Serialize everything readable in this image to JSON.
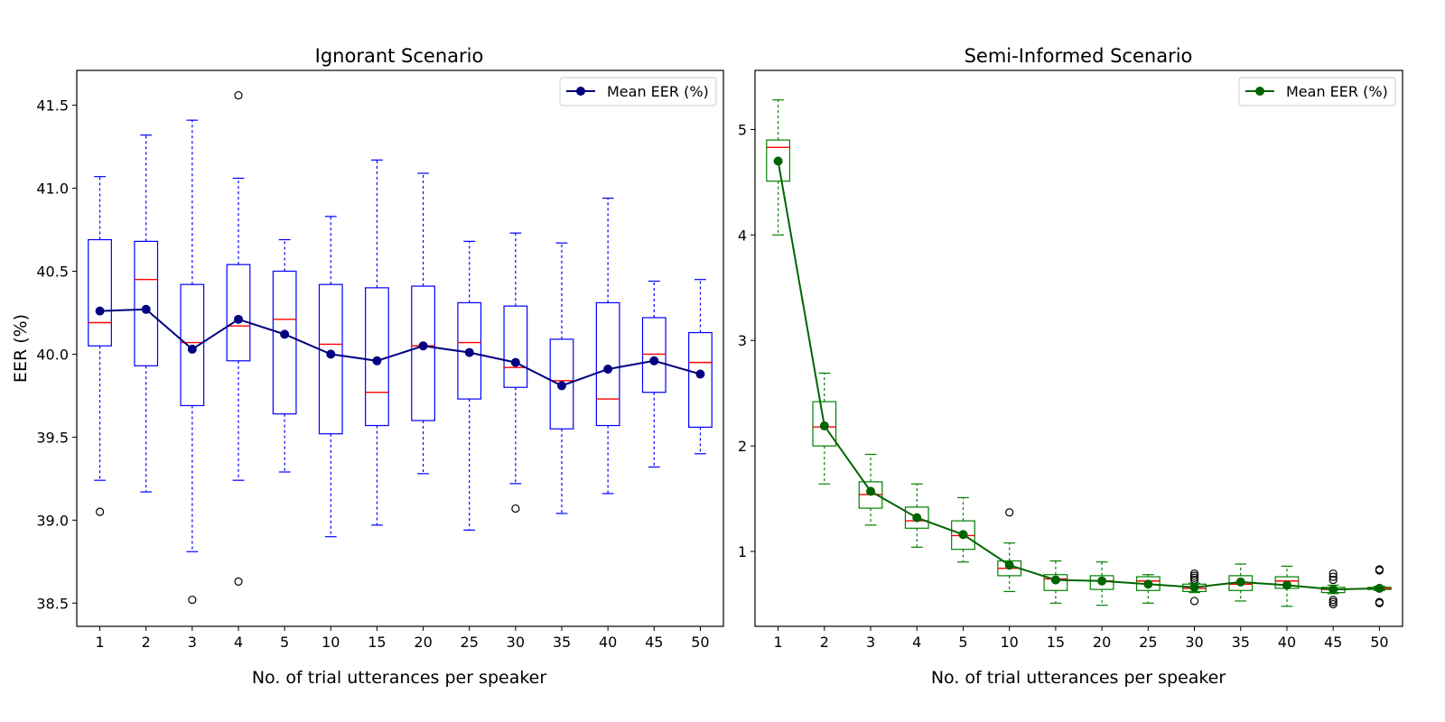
{
  "chart_data": [
    {
      "type": "box",
      "title": "Ignorant Scenario",
      "xlabel": "No. of trial utterances per speaker",
      "ylabel": "EER (%)",
      "ylim": [
        38.36,
        41.71
      ],
      "yticks": [
        38.5,
        39.0,
        39.5,
        40.0,
        40.5,
        41.0,
        41.5
      ],
      "categories": [
        "1",
        "2",
        "3",
        "4",
        "5",
        "10",
        "15",
        "20",
        "25",
        "30",
        "35",
        "40",
        "45",
        "50"
      ],
      "legend": {
        "label": "Mean EER (%)",
        "placement": "top-right"
      },
      "colors": {
        "box": "#0000ff",
        "median": "#ff0000",
        "mean": "#000080"
      },
      "boxes": [
        {
          "whislo": 39.24,
          "q1": 40.05,
          "med": 40.19,
          "q3": 40.69,
          "whishi": 41.07,
          "fliers": [
            39.05
          ]
        },
        {
          "whislo": 39.17,
          "q1": 39.93,
          "med": 40.45,
          "q3": 40.68,
          "whishi": 41.32,
          "fliers": []
        },
        {
          "whislo": 38.81,
          "q1": 39.69,
          "med": 40.07,
          "q3": 40.42,
          "whishi": 41.41,
          "fliers": [
            38.52
          ]
        },
        {
          "whislo": 39.24,
          "q1": 39.96,
          "med": 40.17,
          "q3": 40.54,
          "whishi": 41.06,
          "fliers": [
            41.56,
            38.63
          ]
        },
        {
          "whislo": 39.29,
          "q1": 39.64,
          "med": 40.21,
          "q3": 40.5,
          "whishi": 40.69,
          "fliers": []
        },
        {
          "whislo": 38.9,
          "q1": 39.52,
          "med": 40.06,
          "q3": 40.42,
          "whishi": 40.83,
          "fliers": []
        },
        {
          "whislo": 38.97,
          "q1": 39.57,
          "med": 39.77,
          "q3": 40.4,
          "whishi": 41.17,
          "fliers": []
        },
        {
          "whislo": 39.28,
          "q1": 39.6,
          "med": 40.05,
          "q3": 40.41,
          "whishi": 41.09,
          "fliers": []
        },
        {
          "whislo": 38.94,
          "q1": 39.73,
          "med": 40.07,
          "q3": 40.31,
          "whishi": 40.68,
          "fliers": []
        },
        {
          "whislo": 39.22,
          "q1": 39.8,
          "med": 39.92,
          "q3": 40.29,
          "whishi": 40.73,
          "fliers": [
            39.07
          ]
        },
        {
          "whislo": 39.04,
          "q1": 39.55,
          "med": 39.84,
          "q3": 40.09,
          "whishi": 40.67,
          "fliers": []
        },
        {
          "whislo": 39.16,
          "q1": 39.57,
          "med": 39.73,
          "q3": 40.31,
          "whishi": 40.94,
          "fliers": []
        },
        {
          "whislo": 39.32,
          "q1": 39.77,
          "med": 40.0,
          "q3": 40.22,
          "whishi": 40.44,
          "fliers": []
        },
        {
          "whislo": 39.4,
          "q1": 39.56,
          "med": 39.95,
          "q3": 40.13,
          "whishi": 40.45,
          "fliers": []
        }
      ],
      "series": [
        {
          "name": "Mean EER (%)",
          "values": [
            40.26,
            40.27,
            40.03,
            40.21,
            40.12,
            40.0,
            39.96,
            40.05,
            40.01,
            39.95,
            39.81,
            39.91,
            39.96,
            39.88
          ]
        }
      ]
    },
    {
      "type": "box",
      "title": "Semi-Informed Scenario",
      "xlabel": "No. of trial utterances per speaker",
      "ylabel": "",
      "ylim": [
        0.29,
        5.56
      ],
      "yticks": [
        1,
        2,
        3,
        4,
        5
      ],
      "categories": [
        "1",
        "2",
        "3",
        "4",
        "5",
        "10",
        "15",
        "20",
        "25",
        "30",
        "35",
        "40",
        "45",
        "50"
      ],
      "legend": {
        "label": "Mean EER (%)",
        "placement": "top-right"
      },
      "colors": {
        "box": "#008000",
        "median": "#ff0000",
        "mean": "#006400"
      },
      "boxes": [
        {
          "whislo": 4.0,
          "q1": 4.51,
          "med": 4.83,
          "q3": 4.9,
          "whishi": 5.28,
          "fliers": []
        },
        {
          "whislo": 1.64,
          "q1": 2.0,
          "med": 2.18,
          "q3": 2.42,
          "whishi": 2.69,
          "fliers": []
        },
        {
          "whislo": 1.25,
          "q1": 1.41,
          "med": 1.54,
          "q3": 1.66,
          "whishi": 1.92,
          "fliers": []
        },
        {
          "whislo": 1.04,
          "q1": 1.22,
          "med": 1.29,
          "q3": 1.42,
          "whishi": 1.64,
          "fliers": []
        },
        {
          "whislo": 0.9,
          "q1": 1.02,
          "med": 1.15,
          "q3": 1.29,
          "whishi": 1.51,
          "fliers": []
        },
        {
          "whislo": 0.62,
          "q1": 0.77,
          "med": 0.84,
          "q3": 0.91,
          "whishi": 1.08,
          "fliers": [
            1.37
          ]
        },
        {
          "whislo": 0.51,
          "q1": 0.63,
          "med": 0.74,
          "q3": 0.78,
          "whishi": 0.91,
          "fliers": []
        },
        {
          "whislo": 0.49,
          "q1": 0.64,
          "med": 0.72,
          "q3": 0.77,
          "whishi": 0.9,
          "fliers": []
        },
        {
          "whislo": 0.51,
          "q1": 0.63,
          "med": 0.72,
          "q3": 0.76,
          "whishi": 0.78,
          "fliers": []
        },
        {
          "whislo": 0.61,
          "q1": 0.62,
          "med": 0.65,
          "q3": 0.69,
          "whishi": 0.7,
          "fliers": [
            0.79,
            0.77,
            0.75,
            0.73,
            0.53
          ]
        },
        {
          "whislo": 0.53,
          "q1": 0.63,
          "med": 0.69,
          "q3": 0.77,
          "whishi": 0.88,
          "fliers": []
        },
        {
          "whislo": 0.48,
          "q1": 0.65,
          "med": 0.72,
          "q3": 0.76,
          "whishi": 0.86,
          "fliers": []
        },
        {
          "whislo": 0.6,
          "q1": 0.61,
          "med": 0.64,
          "q3": 0.66,
          "whishi": 0.68,
          "fliers": [
            0.79,
            0.76,
            0.73,
            0.54,
            0.52,
            0.5
          ]
        },
        {
          "whislo": 0.63,
          "q1": 0.64,
          "med": 0.65,
          "q3": 0.66,
          "whishi": 0.67,
          "fliers": [
            0.83,
            0.82,
            0.52,
            0.51
          ]
        }
      ],
      "series": [
        {
          "name": "Mean EER (%)",
          "values": [
            4.7,
            2.19,
            1.57,
            1.32,
            1.16,
            0.87,
            0.73,
            0.72,
            0.69,
            0.66,
            0.71,
            0.68,
            0.64,
            0.65
          ]
        }
      ]
    }
  ]
}
